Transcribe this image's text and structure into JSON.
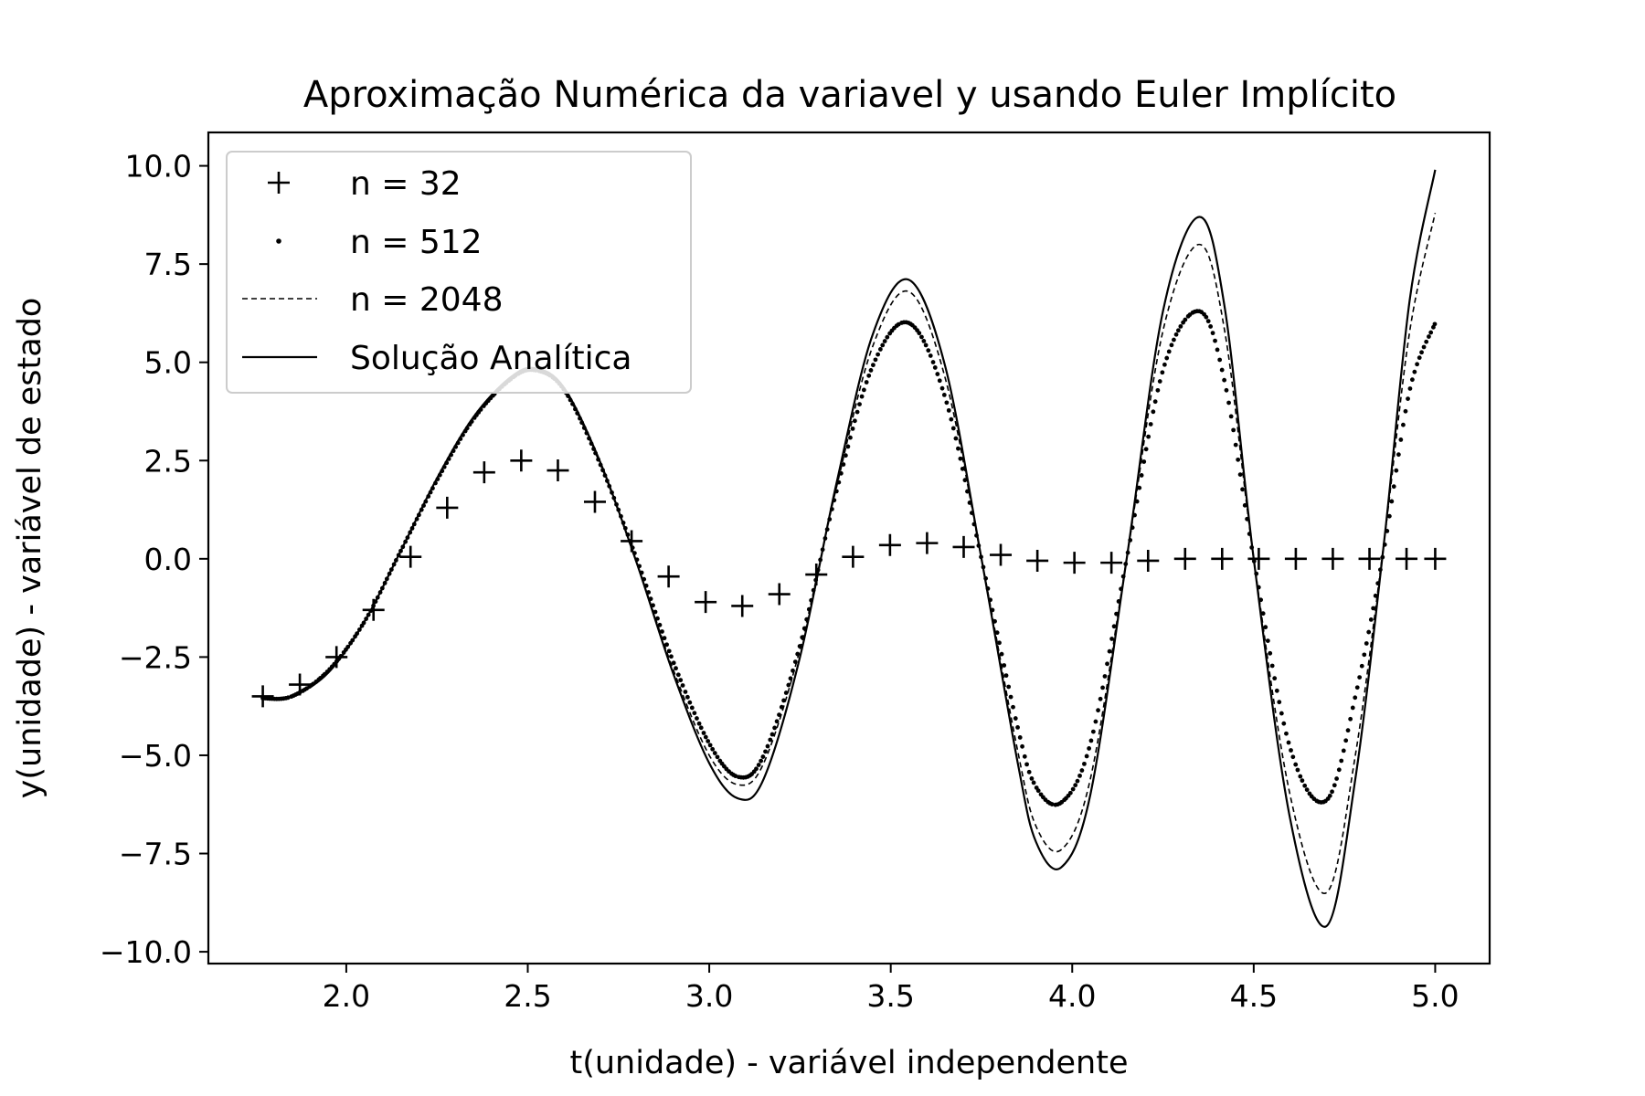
{
  "chart_data": {
    "type": "line",
    "title": "Aproximação Numérica da variavel y usando Euler Implícito",
    "xlabel": "t(unidade) - variável independente",
    "ylabel": "y(unidade) - variável de estado",
    "xlim": [
      1.62,
      5.15
    ],
    "ylim": [
      -10.3,
      10.85
    ],
    "xticks": [
      2.0,
      2.5,
      3.0,
      3.5,
      4.0,
      4.5,
      5.0
    ],
    "xtick_labels": [
      "2.0",
      "2.5",
      "3.0",
      "3.5",
      "4.0",
      "4.5",
      "5.0"
    ],
    "yticks": [
      10.0,
      7.5,
      5.0,
      2.5,
      0.0,
      -2.5,
      -5.0,
      -7.5,
      -10.0
    ],
    "ytick_labels": [
      "10.0",
      "7.5",
      "5.0",
      "2.5",
      "0.0",
      "−2.5",
      "−5.0",
      "−7.5",
      "−10.0"
    ],
    "grid": false,
    "legend_position": "top-left",
    "series": [
      {
        "name": "n = 32",
        "marker": "plus",
        "x": [
          1.77,
          1.872,
          1.973,
          2.075,
          2.177,
          2.278,
          2.38,
          2.482,
          2.583,
          2.685,
          2.786,
          2.888,
          2.99,
          3.091,
          3.193,
          3.295,
          3.396,
          3.498,
          3.6,
          3.701,
          3.803,
          3.904,
          4.006,
          4.108,
          4.209,
          4.311,
          4.413,
          4.514,
          4.616,
          4.718,
          4.819,
          4.921,
          5.0
        ],
        "y": [
          -3.5,
          -3.2,
          -2.5,
          -1.3,
          0.05,
          1.3,
          2.2,
          2.5,
          2.25,
          1.45,
          0.45,
          -0.45,
          -1.1,
          -1.2,
          -0.9,
          -0.4,
          0.05,
          0.35,
          0.4,
          0.3,
          0.1,
          -0.05,
          -0.1,
          -0.1,
          -0.05,
          0.0,
          0.0,
          0.0,
          0.0,
          0.0,
          0.0,
          0.0,
          0.0
        ]
      },
      {
        "name": "n = 512",
        "marker": "dot",
        "x": [
          1.77,
          1.85,
          1.95,
          2.05,
          2.15,
          2.25,
          2.35,
          2.45,
          2.52,
          2.6,
          2.7,
          2.8,
          2.9,
          3.0,
          3.08,
          3.15,
          3.25,
          3.35,
          3.45,
          3.55,
          3.65,
          3.75,
          3.85,
          3.9,
          3.97,
          4.05,
          4.15,
          4.25,
          4.35,
          4.42,
          4.5,
          4.6,
          4.7,
          4.78,
          4.86,
          4.93,
          5.0
        ],
        "y": [
          -3.55,
          -3.5,
          -2.85,
          -1.6,
          0.2,
          2.0,
          3.55,
          4.55,
          4.8,
          4.3,
          2.4,
          0.0,
          -2.6,
          -4.7,
          -5.55,
          -5.0,
          -2.2,
          1.7,
          4.9,
          6.0,
          4.1,
          0.0,
          -4.3,
          -5.8,
          -6.2,
          -4.7,
          0.0,
          4.8,
          6.3,
          4.5,
          0.0,
          -4.8,
          -6.15,
          -3.5,
          0.3,
          4.3,
          6.0
        ]
      },
      {
        "name": "n = 2048",
        "marker": "dashed",
        "x": [
          1.77,
          1.85,
          1.95,
          2.05,
          2.15,
          2.25,
          2.35,
          2.45,
          2.52,
          2.6,
          2.7,
          2.8,
          2.9,
          3.0,
          3.08,
          3.15,
          3.25,
          3.35,
          3.45,
          3.55,
          3.65,
          3.75,
          3.85,
          3.9,
          3.97,
          4.05,
          4.15,
          4.25,
          4.35,
          4.42,
          4.5,
          4.6,
          4.7,
          4.78,
          4.86,
          4.93,
          5.0
        ],
        "y": [
          -3.55,
          -3.5,
          -2.9,
          -1.6,
          0.2,
          2.05,
          3.6,
          4.6,
          4.8,
          4.3,
          2.4,
          -0.1,
          -2.8,
          -5.0,
          -5.75,
          -5.2,
          -2.3,
          1.8,
          5.4,
          6.8,
          4.6,
          0.0,
          -4.9,
          -6.8,
          -7.4,
          -5.6,
          0.0,
          5.8,
          8.0,
          5.8,
          0.0,
          -6.0,
          -8.5,
          -5.0,
          0.5,
          5.8,
          8.8
        ]
      },
      {
        "name": "Solução Analítica",
        "marker": "solid",
        "x": [
          1.77,
          1.85,
          1.95,
          2.05,
          2.15,
          2.25,
          2.35,
          2.45,
          2.52,
          2.6,
          2.7,
          2.8,
          2.9,
          3.0,
          3.08,
          3.15,
          3.25,
          3.35,
          3.45,
          3.55,
          3.65,
          3.75,
          3.85,
          3.9,
          3.97,
          4.05,
          4.15,
          4.25,
          4.35,
          4.42,
          4.5,
          4.6,
          4.7,
          4.78,
          4.86,
          4.93,
          5.0
        ],
        "y": [
          -3.55,
          -3.5,
          -2.9,
          -1.6,
          0.2,
          2.05,
          3.6,
          4.6,
          4.85,
          4.35,
          2.45,
          -0.1,
          -2.9,
          -5.2,
          -6.1,
          -5.6,
          -2.5,
          1.9,
          5.7,
          7.1,
          4.9,
          0.0,
          -5.2,
          -7.2,
          -7.85,
          -6.0,
          0.0,
          6.3,
          8.7,
          6.4,
          0.0,
          -6.6,
          -9.35,
          -5.6,
          0.5,
          6.6,
          9.9
        ]
      }
    ]
  }
}
